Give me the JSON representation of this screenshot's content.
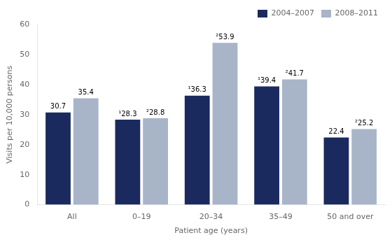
{
  "chart_data": {
    "type": "bar",
    "categories": [
      "All",
      "0–19",
      "20–34",
      "35–49",
      "50 and over"
    ],
    "series": [
      {
        "name": "2004–2007",
        "color": "#1a2a5e",
        "values": [
          30.7,
          28.3,
          36.3,
          39.4,
          22.4
        ],
        "value_labels": [
          "30.7",
          "¹28.3",
          "¹36.3",
          "¹39.4",
          "22.4"
        ]
      },
      {
        "name": "2008–2011",
        "color": "#a8b4c8",
        "values": [
          35.4,
          28.8,
          53.9,
          41.7,
          25.2
        ],
        "value_labels": [
          "35.4",
          "²28.8",
          "²53.9",
          "²41.7",
          "²25.2"
        ]
      }
    ],
    "xlabel": "Patient age (years)",
    "ylabel": "Visits per 10,000 persons",
    "ylim": [
      0,
      60
    ],
    "yticks": [
      0,
      10,
      20,
      30,
      40,
      50,
      60
    ],
    "grid": false,
    "legend": "upper right",
    "data_labels": true
  }
}
